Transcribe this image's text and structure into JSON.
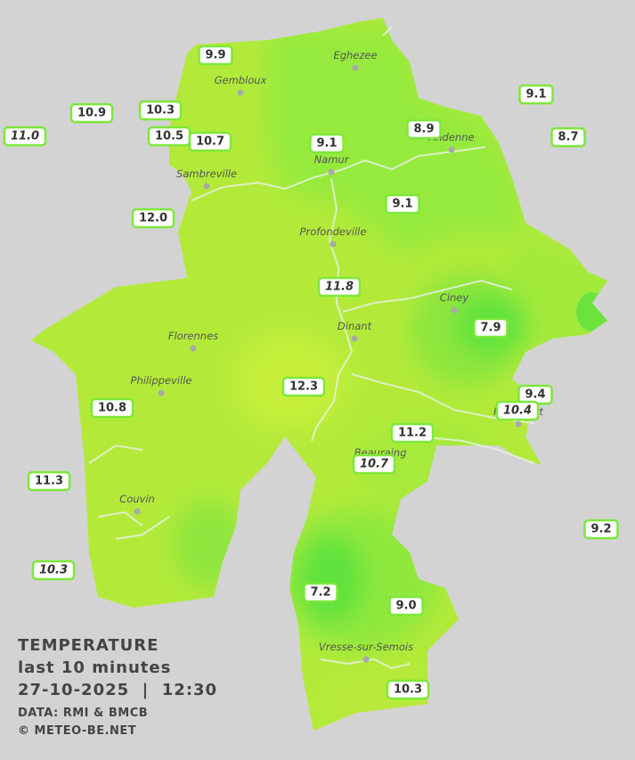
{
  "legend": {
    "title": "TEMPERATURE",
    "period": "last 10 minutes",
    "timestamp": "27-10-2025  |  12:30",
    "source": "DATA: RMI & BMCB",
    "credit": "© METEO-BE.NET"
  },
  "towns": [
    "Eghezee",
    "Gembloux",
    "Andenne",
    "Namur",
    "Sambreville",
    "Profondeville",
    "Ciney",
    "Dinant",
    "Florennes",
    "Philippeville",
    "Rochefort",
    "Beauraing",
    "Couvin",
    "Vresse-sur-Semois"
  ],
  "stations": [
    {
      "label": "9.9",
      "italic": false
    },
    {
      "label": "10.9",
      "italic": false
    },
    {
      "label": "10.3",
      "italic": false
    },
    {
      "label": "11.0",
      "italic": true
    },
    {
      "label": "10.5",
      "italic": false
    },
    {
      "label": "10.7",
      "italic": false
    },
    {
      "label": "9.1",
      "italic": false
    },
    {
      "label": "8.9",
      "italic": false
    },
    {
      "label": "9.1",
      "italic": false
    },
    {
      "label": "8.7",
      "italic": false
    },
    {
      "label": "9.1",
      "italic": false
    },
    {
      "label": "12.0",
      "italic": false
    },
    {
      "label": "11.8",
      "italic": true
    },
    {
      "label": "7.9",
      "italic": false
    },
    {
      "label": "12.3",
      "italic": false
    },
    {
      "label": "9.4",
      "italic": false
    },
    {
      "label": "10.4",
      "italic": true
    },
    {
      "label": "10.8",
      "italic": false
    },
    {
      "label": "11.2",
      "italic": false
    },
    {
      "label": "10.7",
      "italic": true
    },
    {
      "label": "11.3",
      "italic": false
    },
    {
      "label": "9.2",
      "italic": false
    },
    {
      "label": "10.3",
      "italic": true
    },
    {
      "label": "7.2",
      "italic": false
    },
    {
      "label": "9.0",
      "italic": false
    },
    {
      "label": "10.3",
      "italic": false
    }
  ]
}
